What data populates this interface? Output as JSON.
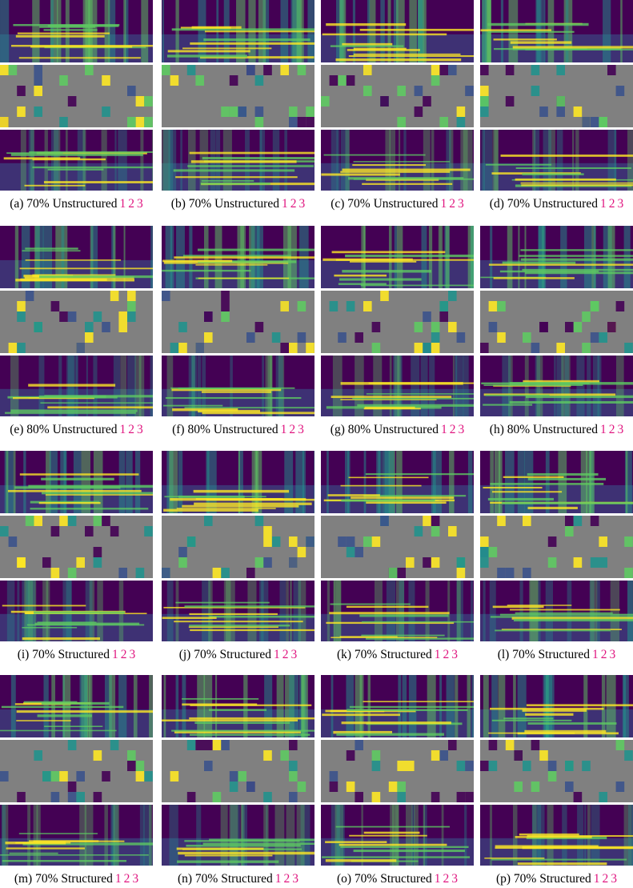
{
  "panels": [
    {
      "caption": "(a) 70% Unstructured",
      "links": [
        "1",
        "2",
        "3"
      ]
    },
    {
      "caption": "(b) 70% Unstructured",
      "links": [
        "1",
        "2",
        "3"
      ]
    },
    {
      "caption": "(c) 70% Unstructured",
      "links": [
        "1",
        "2",
        "3"
      ]
    },
    {
      "caption": "(d) 70% Unstructured",
      "links": [
        "1",
        "2",
        "3"
      ]
    },
    {
      "caption": "(e) 80% Unstructured",
      "links": [
        "1",
        "2",
        "3"
      ]
    },
    {
      "caption": "(f) 80% Unstructured",
      "links": [
        "1",
        "2",
        "3"
      ]
    },
    {
      "caption": "(g) 80% Unstructured",
      "links": [
        "1",
        "2",
        "3"
      ]
    },
    {
      "caption": "(h) 80% Unstructured",
      "links": [
        "1",
        "2",
        "3"
      ]
    },
    {
      "caption": "(i) 70% Structured",
      "links": [
        "1",
        "2",
        "3"
      ]
    },
    {
      "caption": "(j) 70% Structured",
      "links": [
        "1",
        "2",
        "3"
      ]
    },
    {
      "caption": "(k) 70% Structured",
      "links": [
        "1",
        "2",
        "3"
      ]
    },
    {
      "caption": "(l) 70% Structured",
      "links": [
        "1",
        "2",
        "3"
      ]
    },
    {
      "caption": "(m) 70% Structured",
      "links": [
        "1",
        "2",
        "3"
      ]
    },
    {
      "caption": "(n) 70% Structured",
      "links": [
        "1",
        "2",
        "3"
      ]
    },
    {
      "caption": "(o) 70% Structured",
      "links": [
        "1",
        "2",
        "3"
      ]
    },
    {
      "caption": "(p) 70% Structured",
      "links": [
        "1",
        "2",
        "3"
      ]
    }
  ]
}
